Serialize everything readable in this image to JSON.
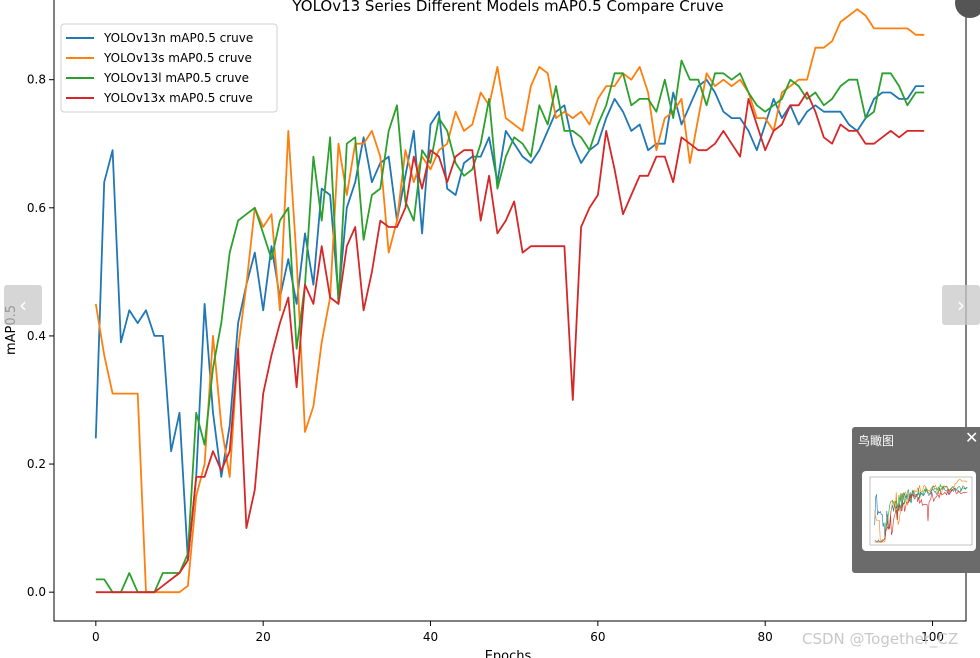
{
  "chart_data": {
    "type": "line",
    "title": "YOLOv13 Series Different Models mAP0.5 Compare Cruve",
    "xlabel": "Epochs",
    "ylabel": "mAP0.5",
    "xlim": [
      -5,
      104
    ],
    "ylim": [
      -0.045,
      0.94
    ],
    "xticks": [
      0,
      20,
      40,
      60,
      80,
      100
    ],
    "yticks": [
      0.0,
      0.2,
      0.4,
      0.6,
      0.8
    ],
    "grid": false,
    "legend": "top-left",
    "series": [
      {
        "name": "YOLOv13n mAP0.5 cruve",
        "color": "#1f77b4",
        "values": [
          0.24,
          0.64,
          0.69,
          0.39,
          0.44,
          0.42,
          0.44,
          0.4,
          0.4,
          0.22,
          0.28,
          0.05,
          0.18,
          0.45,
          0.28,
          0.18,
          0.26,
          0.42,
          0.48,
          0.53,
          0.44,
          0.54,
          0.46,
          0.52,
          0.45,
          0.56,
          0.48,
          0.63,
          0.62,
          0.46,
          0.6,
          0.64,
          0.71,
          0.64,
          0.67,
          0.68,
          0.58,
          0.65,
          0.72,
          0.56,
          0.73,
          0.75,
          0.63,
          0.62,
          0.67,
          0.68,
          0.68,
          0.71,
          0.64,
          0.72,
          0.7,
          0.68,
          0.67,
          0.69,
          0.72,
          0.75,
          0.76,
          0.7,
          0.67,
          0.69,
          0.7,
          0.74,
          0.77,
          0.75,
          0.72,
          0.73,
          0.69,
          0.7,
          0.7,
          0.78,
          0.73,
          0.76,
          0.79,
          0.8,
          0.78,
          0.75,
          0.74,
          0.74,
          0.72,
          0.69,
          0.73,
          0.77,
          0.74,
          0.76,
          0.73,
          0.75,
          0.76,
          0.75,
          0.75,
          0.75,
          0.73,
          0.72,
          0.74,
          0.77,
          0.78,
          0.78,
          0.77,
          0.77,
          0.79,
          0.79
        ]
      },
      {
        "name": "YOLOv13s mAP0.5 cruve",
        "color": "#ff7f0e",
        "values": [
          0.45,
          0.37,
          0.31,
          0.31,
          0.31,
          0.31,
          0.0,
          0.0,
          0.0,
          0.0,
          0.0,
          0.01,
          0.15,
          0.2,
          0.4,
          0.26,
          0.18,
          0.38,
          0.48,
          0.6,
          0.57,
          0.59,
          0.44,
          0.72,
          0.52,
          0.25,
          0.29,
          0.39,
          0.46,
          0.7,
          0.62,
          0.7,
          0.7,
          0.72,
          0.68,
          0.53,
          0.58,
          0.69,
          0.64,
          0.68,
          0.66,
          0.69,
          0.7,
          0.75,
          0.72,
          0.73,
          0.78,
          0.76,
          0.82,
          0.74,
          0.73,
          0.72,
          0.79,
          0.82,
          0.81,
          0.74,
          0.75,
          0.74,
          0.75,
          0.73,
          0.77,
          0.79,
          0.79,
          0.81,
          0.8,
          0.82,
          0.78,
          0.69,
          0.74,
          0.75,
          0.77,
          0.67,
          0.74,
          0.81,
          0.79,
          0.8,
          0.79,
          0.8,
          0.78,
          0.74,
          0.74,
          0.72,
          0.78,
          0.79,
          0.8,
          0.8,
          0.85,
          0.85,
          0.86,
          0.89,
          0.9,
          0.91,
          0.9,
          0.88,
          0.88,
          0.88,
          0.88,
          0.88,
          0.87,
          0.87
        ]
      },
      {
        "name": "YOLOv13l mAP0.5 cruve",
        "color": "#2ca02c",
        "values": [
          0.02,
          0.02,
          0.0,
          0.0,
          0.03,
          0.0,
          0.0,
          0.0,
          0.03,
          0.03,
          0.03,
          0.06,
          0.28,
          0.23,
          0.35,
          0.42,
          0.53,
          0.58,
          0.59,
          0.6,
          0.56,
          0.52,
          0.58,
          0.6,
          0.38,
          0.48,
          0.68,
          0.58,
          0.71,
          0.45,
          0.7,
          0.71,
          0.55,
          0.62,
          0.63,
          0.72,
          0.76,
          0.61,
          0.58,
          0.69,
          0.67,
          0.74,
          0.72,
          0.67,
          0.65,
          0.66,
          0.7,
          0.77,
          0.63,
          0.68,
          0.71,
          0.7,
          0.68,
          0.76,
          0.73,
          0.79,
          0.72,
          0.72,
          0.71,
          0.69,
          0.73,
          0.76,
          0.81,
          0.81,
          0.76,
          0.77,
          0.77,
          0.75,
          0.8,
          0.74,
          0.83,
          0.8,
          0.8,
          0.76,
          0.81,
          0.81,
          0.8,
          0.81,
          0.78,
          0.76,
          0.75,
          0.76,
          0.77,
          0.8,
          0.79,
          0.77,
          0.78,
          0.76,
          0.77,
          0.79,
          0.8,
          0.8,
          0.74,
          0.75,
          0.81,
          0.81,
          0.79,
          0.76,
          0.78,
          0.78
        ]
      },
      {
        "name": "YOLOv13x mAP0.5 cruve",
        "color": "#d62728",
        "values": [
          0.0,
          0.0,
          0.0,
          0.0,
          0.0,
          0.0,
          0.0,
          0.0,
          0.01,
          0.02,
          0.03,
          0.05,
          0.18,
          0.18,
          0.22,
          0.19,
          0.22,
          0.38,
          0.1,
          0.16,
          0.31,
          0.37,
          0.42,
          0.46,
          0.32,
          0.48,
          0.45,
          0.54,
          0.46,
          0.45,
          0.54,
          0.57,
          0.44,
          0.5,
          0.58,
          0.57,
          0.57,
          0.6,
          0.68,
          0.63,
          0.69,
          0.68,
          0.64,
          0.68,
          0.69,
          0.69,
          0.58,
          0.65,
          0.56,
          0.58,
          0.61,
          0.53,
          0.54,
          0.54,
          0.54,
          0.54,
          0.54,
          0.3,
          0.57,
          0.6,
          0.62,
          0.72,
          0.66,
          0.59,
          0.62,
          0.65,
          0.65,
          0.68,
          0.68,
          0.64,
          0.71,
          0.7,
          0.69,
          0.69,
          0.7,
          0.72,
          0.7,
          0.68,
          0.77,
          0.73,
          0.69,
          0.72,
          0.73,
          0.76,
          0.76,
          0.78,
          0.75,
          0.71,
          0.7,
          0.73,
          0.72,
          0.72,
          0.7,
          0.7,
          0.71,
          0.72,
          0.71,
          0.72,
          0.72,
          0.72
        ]
      }
    ]
  },
  "ui": {
    "nav_prev": "‹",
    "nav_next": "›",
    "birdseye_title": "鸟瞰图",
    "birdseye_close": "✕",
    "watermark": "CSDN @Together_CZ"
  }
}
